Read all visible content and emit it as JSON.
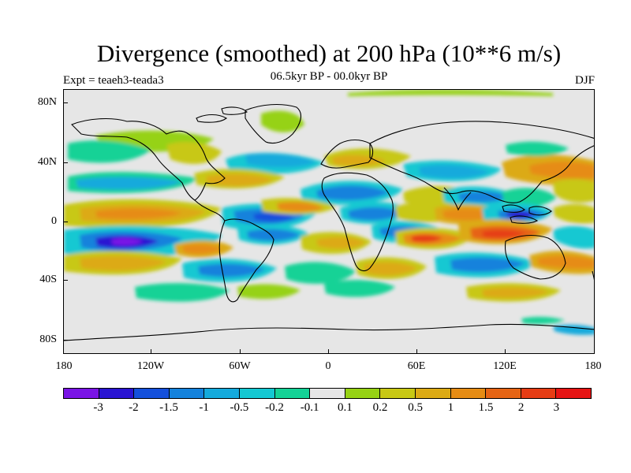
{
  "title": "Divergence (smoothed) at 200 hPa (10**6 m/s)",
  "subtitle": "06.5kyr BP - 00.0kyr BP",
  "experiment": "Expt = teaeh3-teada3",
  "season": "DJF",
  "lat_labels": [
    "80N",
    "40N",
    "0",
    "40S",
    "80S"
  ],
  "lon_labels": [
    "180",
    "120W",
    "60W",
    "0",
    "60E",
    "120E",
    "180"
  ],
  "colorbar": {
    "colors": [
      "#7a14e6",
      "#2a14d2",
      "#1450dc",
      "#1482dc",
      "#14aadc",
      "#14c8d2",
      "#14d296",
      "#e6e6e6",
      "#96d214",
      "#c8c814",
      "#dcaa14",
      "#e68c14",
      "#e66414",
      "#e63c14",
      "#e61414"
    ],
    "labels": [
      "-3",
      "-2",
      "-1.5",
      "-1",
      "-0.5",
      "-0.2",
      "-0.1",
      "0.1",
      "0.2",
      "0.5",
      "1",
      "1.5",
      "2",
      "3"
    ]
  }
}
